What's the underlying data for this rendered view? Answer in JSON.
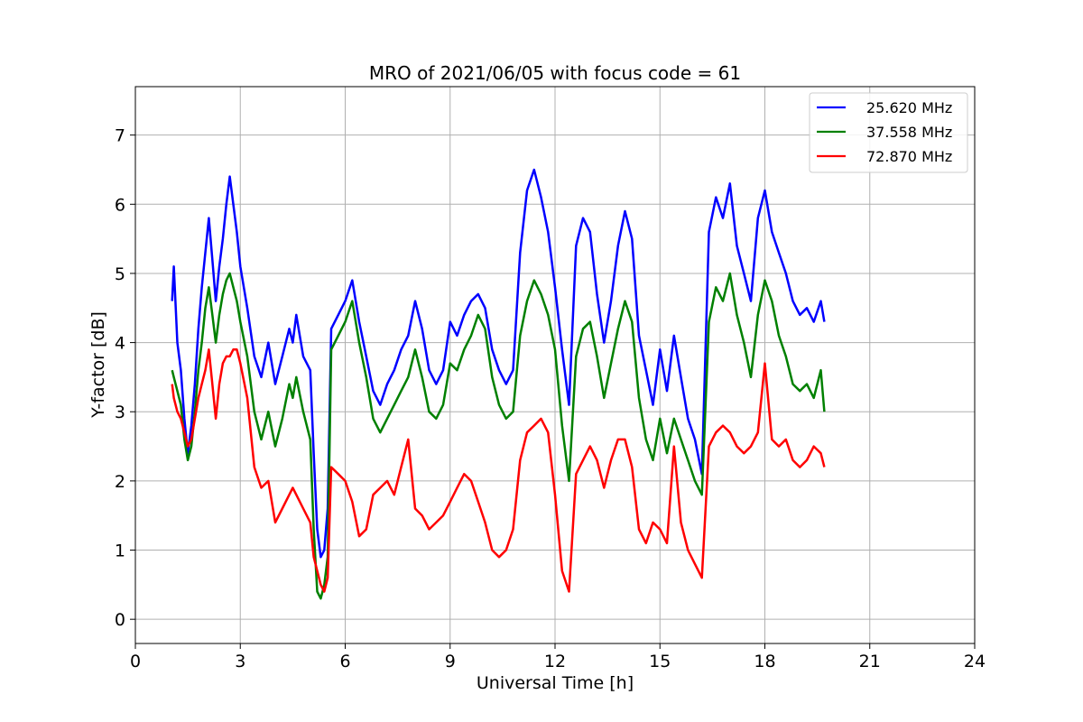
{
  "chart_data": {
    "type": "line",
    "title": "MRO of 2021/06/05 with focus code = 61",
    "xlabel": "Universal Time [h]",
    "ylabel": "Y-factor [dB]",
    "xlim": [
      0,
      24
    ],
    "ylim": [
      -0.35,
      7.7
    ],
    "x_ticks": [
      0,
      3,
      6,
      9,
      12,
      15,
      18,
      21,
      24
    ],
    "y_ticks": [
      0,
      1,
      2,
      3,
      4,
      5,
      6,
      7
    ],
    "grid": true,
    "legend_position": "top-right",
    "series": [
      {
        "name": "25.620 MHz",
        "color": "#0000ff",
        "x": [
          1.05,
          1.1,
          1.2,
          1.3,
          1.4,
          1.5,
          1.6,
          1.7,
          1.8,
          1.9,
          2.0,
          2.1,
          2.2,
          2.3,
          2.4,
          2.5,
          2.6,
          2.7,
          2.8,
          2.9,
          3.0,
          3.2,
          3.4,
          3.6,
          3.8,
          4.0,
          4.2,
          4.4,
          4.5,
          4.6,
          4.8,
          5.0,
          5.1,
          5.2,
          5.3,
          5.4,
          5.5,
          5.6,
          5.8,
          6.0,
          6.2,
          6.4,
          6.6,
          6.8,
          7.0,
          7.2,
          7.4,
          7.6,
          7.8,
          8.0,
          8.2,
          8.4,
          8.6,
          8.8,
          9.0,
          9.2,
          9.4,
          9.6,
          9.8,
          10.0,
          10.2,
          10.4,
          10.6,
          10.8,
          11.0,
          11.2,
          11.4,
          11.6,
          11.8,
          12.0,
          12.2,
          12.4,
          12.6,
          12.8,
          13.0,
          13.2,
          13.4,
          13.6,
          13.8,
          14.0,
          14.2,
          14.4,
          14.6,
          14.8,
          15.0,
          15.2,
          15.4,
          15.6,
          15.8,
          16.0,
          16.2,
          16.4,
          16.6,
          16.8,
          17.0,
          17.2,
          17.4,
          17.6,
          17.8,
          18.0,
          18.2,
          18.4,
          18.6,
          18.8,
          19.0,
          19.2,
          19.4,
          19.6,
          19.7
        ],
        "y": [
          4.6,
          5.1,
          4.0,
          3.6,
          2.9,
          2.4,
          2.8,
          3.4,
          4.2,
          4.8,
          5.3,
          5.8,
          5.2,
          4.6,
          5.1,
          5.5,
          6.0,
          6.4,
          6.0,
          5.6,
          5.1,
          4.5,
          3.8,
          3.5,
          4.0,
          3.4,
          3.8,
          4.2,
          4.0,
          4.4,
          3.8,
          3.6,
          2.4,
          1.3,
          0.9,
          1.0,
          1.6,
          4.2,
          4.4,
          4.6,
          4.9,
          4.3,
          3.8,
          3.3,
          3.1,
          3.4,
          3.6,
          3.9,
          4.1,
          4.6,
          4.2,
          3.6,
          3.4,
          3.6,
          4.3,
          4.1,
          4.4,
          4.6,
          4.7,
          4.5,
          3.9,
          3.6,
          3.4,
          3.6,
          5.3,
          6.2,
          6.5,
          6.1,
          5.6,
          4.8,
          3.9,
          3.1,
          5.4,
          5.8,
          5.6,
          4.7,
          4.0,
          4.6,
          5.4,
          5.9,
          5.5,
          4.1,
          3.6,
          3.1,
          3.9,
          3.3,
          4.1,
          3.5,
          2.9,
          2.6,
          2.1,
          5.6,
          6.1,
          5.8,
          6.3,
          5.4,
          5.0,
          4.6,
          5.8,
          6.2,
          5.6,
          5.3,
          5.0,
          4.6,
          4.4,
          4.5,
          4.3,
          4.6,
          4.3
        ]
      },
      {
        "name": "37.558 MHz",
        "color": "#008000",
        "x": [
          1.05,
          1.1,
          1.2,
          1.3,
          1.4,
          1.5,
          1.6,
          1.7,
          1.8,
          1.9,
          2.0,
          2.1,
          2.2,
          2.3,
          2.4,
          2.5,
          2.6,
          2.7,
          2.8,
          2.9,
          3.0,
          3.2,
          3.4,
          3.6,
          3.8,
          4.0,
          4.2,
          4.4,
          4.5,
          4.6,
          4.8,
          5.0,
          5.1,
          5.2,
          5.3,
          5.4,
          5.5,
          5.6,
          5.8,
          6.0,
          6.2,
          6.4,
          6.6,
          6.8,
          7.0,
          7.2,
          7.4,
          7.6,
          7.8,
          8.0,
          8.2,
          8.4,
          8.6,
          8.8,
          9.0,
          9.2,
          9.4,
          9.6,
          9.8,
          10.0,
          10.2,
          10.4,
          10.6,
          10.8,
          11.0,
          11.2,
          11.4,
          11.6,
          11.8,
          12.0,
          12.2,
          12.4,
          12.6,
          12.8,
          13.0,
          13.2,
          13.4,
          13.6,
          13.8,
          14.0,
          14.2,
          14.4,
          14.6,
          14.8,
          15.0,
          15.2,
          15.4,
          15.6,
          15.8,
          16.0,
          16.2,
          16.4,
          16.6,
          16.8,
          17.0,
          17.2,
          17.4,
          17.6,
          17.8,
          18.0,
          18.2,
          18.4,
          18.6,
          18.8,
          19.0,
          19.2,
          19.4,
          19.6,
          19.7
        ],
        "y": [
          3.6,
          3.5,
          3.3,
          3.1,
          2.6,
          2.3,
          2.5,
          3.0,
          3.6,
          4.0,
          4.5,
          4.8,
          4.4,
          4.0,
          4.4,
          4.7,
          4.9,
          5.0,
          4.8,
          4.6,
          4.3,
          3.8,
          3.0,
          2.6,
          3.0,
          2.5,
          2.9,
          3.4,
          3.2,
          3.5,
          3.0,
          2.6,
          1.3,
          0.4,
          0.3,
          0.5,
          0.9,
          3.9,
          4.1,
          4.3,
          4.6,
          4.0,
          3.5,
          2.9,
          2.7,
          2.9,
          3.1,
          3.3,
          3.5,
          3.9,
          3.5,
          3.0,
          2.9,
          3.1,
          3.7,
          3.6,
          3.9,
          4.1,
          4.4,
          4.2,
          3.5,
          3.1,
          2.9,
          3.0,
          4.1,
          4.6,
          4.9,
          4.7,
          4.4,
          3.9,
          2.8,
          2.0,
          3.8,
          4.2,
          4.3,
          3.8,
          3.2,
          3.7,
          4.2,
          4.6,
          4.3,
          3.2,
          2.6,
          2.3,
          2.9,
          2.4,
          2.9,
          2.6,
          2.3,
          2.0,
          1.8,
          4.3,
          4.8,
          4.6,
          5.0,
          4.4,
          4.0,
          3.5,
          4.4,
          4.9,
          4.6,
          4.1,
          3.8,
          3.4,
          3.3,
          3.4,
          3.2,
          3.6,
          3.0
        ]
      },
      {
        "name": "72.870 MHz",
        "color": "#ff0000",
        "x": [
          1.05,
          1.1,
          1.2,
          1.3,
          1.4,
          1.5,
          1.6,
          1.7,
          1.8,
          1.9,
          2.0,
          2.1,
          2.2,
          2.3,
          2.4,
          2.5,
          2.6,
          2.7,
          2.8,
          2.9,
          3.0,
          3.2,
          3.4,
          3.6,
          3.8,
          4.0,
          4.2,
          4.4,
          4.5,
          4.6,
          4.8,
          5.0,
          5.1,
          5.2,
          5.3,
          5.4,
          5.5,
          5.6,
          5.8,
          6.0,
          6.2,
          6.4,
          6.6,
          6.8,
          7.0,
          7.2,
          7.4,
          7.6,
          7.8,
          8.0,
          8.2,
          8.4,
          8.6,
          8.8,
          9.0,
          9.2,
          9.4,
          9.6,
          9.8,
          10.0,
          10.2,
          10.4,
          10.6,
          10.8,
          11.0,
          11.2,
          11.4,
          11.6,
          11.8,
          12.0,
          12.2,
          12.4,
          12.6,
          12.8,
          13.0,
          13.2,
          13.4,
          13.6,
          13.8,
          14.0,
          14.2,
          14.4,
          14.6,
          14.8,
          15.0,
          15.2,
          15.4,
          15.6,
          15.8,
          16.0,
          16.2,
          16.4,
          16.6,
          16.8,
          17.0,
          17.2,
          17.4,
          17.6,
          17.8,
          18.0,
          18.2,
          18.4,
          18.6,
          18.8,
          19.0,
          19.2,
          19.4,
          19.6,
          19.7
        ],
        "y": [
          3.4,
          3.2,
          3.0,
          2.9,
          2.7,
          2.5,
          2.6,
          2.9,
          3.2,
          3.4,
          3.6,
          3.9,
          3.4,
          2.9,
          3.4,
          3.7,
          3.8,
          3.8,
          3.9,
          3.9,
          3.7,
          3.2,
          2.2,
          1.9,
          2.0,
          1.4,
          1.6,
          1.8,
          1.9,
          1.8,
          1.6,
          1.4,
          0.9,
          0.7,
          0.5,
          0.4,
          0.6,
          2.2,
          2.1,
          2.0,
          1.7,
          1.2,
          1.3,
          1.8,
          1.9,
          2.0,
          1.8,
          2.2,
          2.6,
          1.6,
          1.5,
          1.3,
          1.4,
          1.5,
          1.7,
          1.9,
          2.1,
          2.0,
          1.7,
          1.4,
          1.0,
          0.9,
          1.0,
          1.3,
          2.3,
          2.7,
          2.8,
          2.9,
          2.7,
          1.8,
          0.7,
          0.4,
          2.1,
          2.3,
          2.5,
          2.3,
          1.9,
          2.3,
          2.6,
          2.6,
          2.2,
          1.3,
          1.1,
          1.4,
          1.3,
          1.1,
          2.5,
          1.4,
          1.0,
          0.8,
          0.6,
          2.5,
          2.7,
          2.8,
          2.7,
          2.5,
          2.4,
          2.5,
          2.7,
          3.7,
          2.6,
          2.5,
          2.6,
          2.3,
          2.2,
          2.3,
          2.5,
          2.4,
          2.2
        ]
      }
    ]
  }
}
